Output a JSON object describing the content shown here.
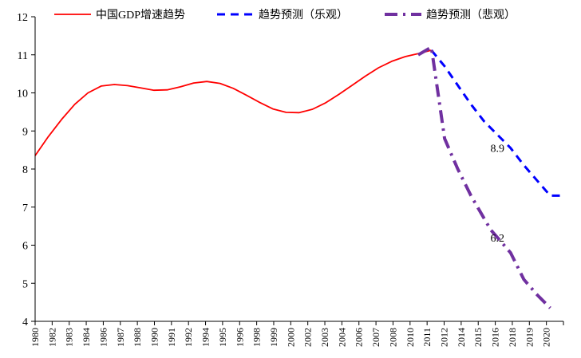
{
  "chart_data": {
    "type": "line",
    "title": "",
    "xlabel": "",
    "ylabel": "",
    "ylim": [
      4,
      12
    ],
    "yticks": [
      4,
      5,
      6,
      7,
      8,
      9,
      10,
      11,
      12
    ],
    "xlim": [
      1980,
      2020
    ],
    "xtick_labels": [
      "1980",
      "1982",
      "1983",
      "1984",
      "1986",
      "1987",
      "1988",
      "1990",
      "1991",
      "1992",
      "1994",
      "1995",
      "1996",
      "1998",
      "1999",
      "2000",
      "2002",
      "2003",
      "2004",
      "2006",
      "2007",
      "2008",
      "2010",
      "2011",
      "2012",
      "2014",
      "2015",
      "2016",
      "2018",
      "2019",
      "2020"
    ],
    "grid": false,
    "legend_position": "top",
    "series": [
      {
        "name": "中国GDP增速趋势",
        "color": "#ff0000",
        "style": "solid",
        "x": [
          1980,
          1981,
          1982,
          1983,
          1984,
          1985,
          1986,
          1987,
          1988,
          1989,
          1990,
          1991,
          1992,
          1993,
          1994,
          1995,
          1996,
          1997,
          1998,
          1999,
          2000,
          2001,
          2002,
          2003,
          2004,
          2005,
          2006,
          2007,
          2008,
          2009,
          2010
        ],
        "y": [
          8.35,
          8.85,
          9.3,
          9.7,
          10.0,
          10.18,
          10.22,
          10.19,
          10.13,
          10.07,
          10.08,
          10.16,
          10.26,
          10.3,
          10.25,
          10.12,
          9.94,
          9.75,
          9.58,
          9.49,
          9.48,
          9.57,
          9.74,
          9.96,
          10.2,
          10.44,
          10.66,
          10.83,
          10.95,
          11.03,
          11.12
        ]
      },
      {
        "name": "趋势预测（乐观）",
        "color": "#0000ff",
        "style": "dashed",
        "x": [
          2010,
          2011,
          2012,
          2013,
          2014,
          2015,
          2016,
          2017,
          2018,
          2019,
          2020
        ],
        "y": [
          11.12,
          10.7,
          10.2,
          9.7,
          9.25,
          8.9,
          8.55,
          8.1,
          7.7,
          7.3,
          7.3
        ]
      },
      {
        "name": "趋势预测（悲观）",
        "color": "#7030a0",
        "style": "dashdot",
        "x": [
          2009,
          2010,
          2010.5,
          2011,
          2011.5,
          2012,
          2013,
          2014,
          2014.5,
          2015,
          2016,
          2017,
          2017.5,
          2018,
          2019
        ],
        "y": [
          11.0,
          11.2,
          10.0,
          8.8,
          8.4,
          8.0,
          7.3,
          6.7,
          6.4,
          6.2,
          5.8,
          5.1,
          4.9,
          4.7,
          4.35
        ]
      }
    ],
    "annotations": [
      {
        "text": "8.9",
        "x": 2015,
        "y": 8.55
      },
      {
        "text": "6.2",
        "x": 2015,
        "y": 6.2
      }
    ]
  }
}
